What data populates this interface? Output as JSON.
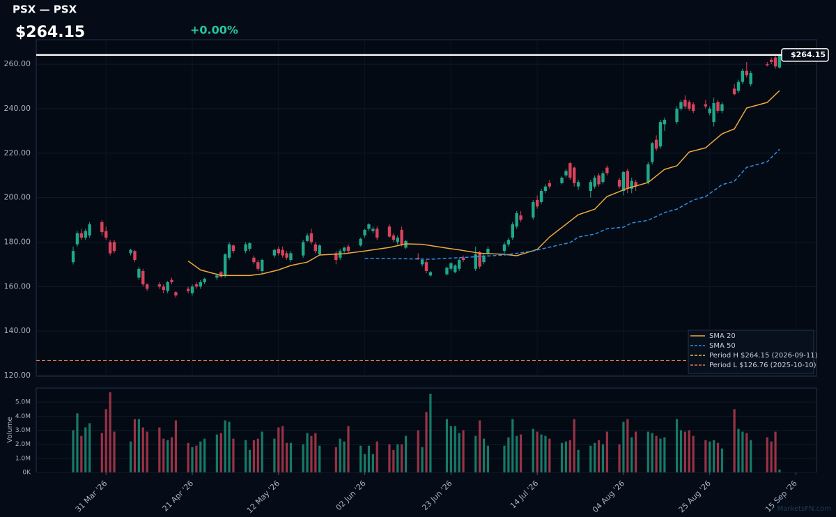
{
  "chart_data": {
    "type": "candlestick",
    "title": "PSX — PSX",
    "price_label": "$264.15",
    "change_label": "+0.00%",
    "x": [
      "2026-03-23",
      "2026-03-24",
      "2026-03-25",
      "2026-03-26",
      "2026-03-27",
      "2026-03-30",
      "2026-03-31",
      "2026-04-01",
      "2026-04-02",
      "2026-04-06",
      "2026-04-07",
      "2026-04-08",
      "2026-04-09",
      "2026-04-10",
      "2026-04-13",
      "2026-04-14",
      "2026-04-15",
      "2026-04-16",
      "2026-04-17",
      "2026-04-20",
      "2026-04-21",
      "2026-04-22",
      "2026-04-23",
      "2026-04-24",
      "2026-04-27",
      "2026-04-28",
      "2026-04-29",
      "2026-04-30",
      "2026-05-01",
      "2026-05-04",
      "2026-05-05",
      "2026-05-06",
      "2026-05-07",
      "2026-05-08",
      "2026-05-11",
      "2026-05-12",
      "2026-05-13",
      "2026-05-14",
      "2026-05-15",
      "2026-05-18",
      "2026-05-19",
      "2026-05-20",
      "2026-05-21",
      "2026-05-22",
      "2026-05-26",
      "2026-05-27",
      "2026-05-28",
      "2026-05-29",
      "2026-06-01",
      "2026-06-02",
      "2026-06-03",
      "2026-06-04",
      "2026-06-05",
      "2026-06-08",
      "2026-06-09",
      "2026-06-10",
      "2026-06-11",
      "2026-06-12",
      "2026-06-15",
      "2026-06-16",
      "2026-06-17",
      "2026-06-18",
      "2026-06-22",
      "2026-06-23",
      "2026-06-24",
      "2026-06-25",
      "2026-06-26",
      "2026-06-29",
      "2026-06-30",
      "2026-07-01",
      "2026-07-02",
      "2026-07-06",
      "2026-07-07",
      "2026-07-08",
      "2026-07-09",
      "2026-07-10",
      "2026-07-13",
      "2026-07-14",
      "2026-07-15",
      "2026-07-16",
      "2026-07-17",
      "2026-07-20",
      "2026-07-21",
      "2026-07-22",
      "2026-07-23",
      "2026-07-24",
      "2026-07-27",
      "2026-07-28",
      "2026-07-29",
      "2026-07-30",
      "2026-07-31",
      "2026-08-03",
      "2026-08-04",
      "2026-08-05",
      "2026-08-06",
      "2026-08-07",
      "2026-08-10",
      "2026-08-11",
      "2026-08-12",
      "2026-08-13",
      "2026-08-14",
      "2026-08-17",
      "2026-08-18",
      "2026-08-19",
      "2026-08-20",
      "2026-08-21",
      "2026-08-24",
      "2026-08-25",
      "2026-08-26",
      "2026-08-27",
      "2026-08-28",
      "2026-08-31",
      "2026-09-01",
      "2026-09-02",
      "2026-09-03",
      "2026-09-04",
      "2026-09-08",
      "2026-09-09",
      "2026-09-10",
      "2026-09-11"
    ],
    "open": [
      171,
      179,
      184,
      182,
      183,
      189,
      185,
      180,
      180,
      175,
      176,
      164,
      167,
      161,
      161,
      160,
      158,
      163,
      157.5,
      159,
      157,
      161,
      160,
      162,
      164,
      166.5,
      165,
      173,
      178.5,
      176,
      177,
      173,
      171,
      167,
      174,
      177,
      176.5,
      175,
      172,
      174,
      180.5,
      184,
      179,
      174.5,
      175,
      173,
      176,
      178,
      178.5,
      183,
      186,
      185,
      186,
      187,
      183,
      180,
      185.5,
      177.5,
      173,
      170,
      171,
      165,
      165.5,
      168,
      166.5,
      168,
      173,
      168,
      175.5,
      171,
      175,
      176,
      179,
      182,
      187,
      192,
      191,
      199,
      198,
      203,
      206.5,
      206.5,
      210,
      215.5,
      213.5,
      205,
      203,
      205,
      210,
      207,
      213.5,
      208,
      203,
      212,
      204,
      207,
      207,
      216,
      226,
      223,
      233,
      234,
      240,
      244,
      243,
      242,
      242,
      238,
      234,
      243,
      239,
      249,
      248,
      252,
      257,
      251,
      260,
      262,
      263,
      258.5
    ],
    "high": [
      178,
      185,
      186,
      186,
      189,
      190,
      187,
      181,
      181,
      177,
      176.5,
      169,
      168,
      161.5,
      162,
      161,
      162.5,
      164,
      158,
      160,
      161,
      162,
      163,
      164,
      166,
      167,
      175,
      180,
      179,
      180,
      180,
      174,
      172,
      172.5,
      177,
      178,
      178,
      176,
      176,
      181,
      184,
      186,
      180,
      179,
      176,
      177,
      178,
      179,
      182,
      186,
      188.5,
      187,
      187,
      188,
      184,
      183,
      187,
      181,
      175,
      172.5,
      172,
      167,
      169,
      171,
      170,
      173,
      174,
      178,
      176,
      175,
      178,
      180,
      182,
      189,
      194,
      194,
      199,
      201,
      204,
      206,
      208,
      209.5,
      213,
      216,
      214,
      208,
      208,
      210,
      211,
      212,
      214.5,
      209,
      212,
      213,
      209,
      208,
      216,
      225,
      228,
      235,
      236,
      241,
      244,
      246,
      244,
      243,
      244,
      241,
      245,
      244,
      243,
      251,
      253,
      258,
      261,
      257,
      261,
      263,
      264,
      264.15
    ],
    "low": [
      170,
      178,
      181,
      181,
      182,
      183,
      181,
      174,
      175,
      174,
      171,
      163,
      160,
      158,
      159,
      157,
      157,
      161,
      155,
      157,
      156,
      159,
      159,
      161,
      163,
      164,
      164,
      172,
      175,
      175,
      176,
      170,
      167,
      166,
      173,
      174,
      173,
      172,
      171,
      173,
      180,
      179,
      175,
      174,
      170,
      172,
      175,
      175,
      178,
      182,
      185,
      184,
      181,
      182,
      180,
      179,
      178,
      177,
      172,
      169,
      166,
      164.5,
      165,
      167,
      166,
      167,
      171,
      167,
      168,
      170,
      174,
      175,
      178,
      181,
      186,
      189,
      190,
      195,
      197,
      202,
      204,
      206,
      209,
      208,
      205,
      203.5,
      200,
      204,
      205,
      206,
      210,
      204,
      201,
      202,
      202,
      203,
      206,
      215,
      221,
      222,
      230,
      233,
      239,
      240,
      239,
      238,
      240,
      237,
      232,
      238,
      238,
      246,
      247,
      251,
      254,
      250,
      259,
      260,
      258,
      258
    ],
    "close": [
      176,
      184,
      182,
      185,
      188,
      184.5,
      182,
      175,
      176,
      176.5,
      172,
      168,
      161,
      159,
      160,
      158.5,
      162,
      162,
      156,
      158,
      160,
      160,
      162,
      163.5,
      165,
      164.5,
      174.5,
      179,
      176,
      179,
      179.5,
      171,
      168,
      172,
      176.5,
      175,
      174,
      173,
      175,
      180,
      183,
      180,
      176,
      178.5,
      172,
      176,
      177.5,
      176,
      181.5,
      185.5,
      188,
      186,
      182,
      182.5,
      181,
      182,
      179,
      180.5,
      172.5,
      172,
      167,
      166.5,
      168.5,
      170.5,
      169.5,
      172,
      172,
      174.5,
      169,
      174,
      177,
      179,
      181,
      188,
      193,
      190,
      198,
      196,
      203,
      205,
      205,
      209,
      212,
      209,
      206.5,
      207,
      207,
      209,
      206,
      211,
      211,
      205,
      211.5,
      204,
      207.5,
      205,
      215,
      224.5,
      222,
      234,
      235,
      240,
      243,
      241,
      240,
      239,
      241,
      240,
      242.5,
      239,
      242,
      246.5,
      252,
      257,
      255,
      256,
      259.5,
      261,
      259,
      264.15
    ],
    "volume": [
      3000000,
      4200000,
      2600000,
      3200000,
      3500000,
      2800000,
      4500000,
      5700000,
      2900000,
      2200000,
      3800000,
      3800000,
      3200000,
      2900000,
      3200000,
      2400000,
      2300000,
      2500000,
      3700000,
      2100000,
      1800000,
      1900000,
      2200000,
      2400000,
      2700000,
      2800000,
      3700000,
      3600000,
      2400000,
      2300000,
      1600000,
      2300000,
      2400000,
      2900000,
      2400000,
      3200000,
      3300000,
      2100000,
      2100000,
      2000000,
      2800000,
      2600000,
      2800000,
      1900000,
      1800000,
      2400000,
      2200000,
      3300000,
      1900000,
      1300000,
      1900000,
      1300000,
      2200000,
      2000000,
      1600000,
      2000000,
      2000000,
      2600000,
      3000000,
      1800000,
      4300000,
      5600000,
      3800000,
      3300000,
      3300000,
      2800000,
      3000000,
      2600000,
      3700000,
      2400000,
      1900000,
      1900000,
      2500000,
      3800000,
      2600000,
      2700000,
      3100000,
      2900000,
      2700000,
      2600000,
      2400000,
      2100000,
      2200000,
      2300000,
      3800000,
      1600000,
      1900000,
      2100000,
      2300000,
      2000000,
      2900000,
      2000000,
      3600000,
      3800000,
      2500000,
      2900000,
      2900000,
      2800000,
      2600000,
      2400000,
      2500000,
      3800000,
      3000000,
      2900000,
      3000000,
      2600000,
      2300000,
      2200000,
      2300000,
      2100000,
      1700000,
      4500000,
      3100000,
      2900000,
      2800000,
      2300000,
      2500000,
      2200000,
      2900000,
      200000
    ],
    "up_color": "#1fa88a",
    "down_color": "#d9435b",
    "xlim": [
      "2026-03-14",
      "2026-09-20"
    ],
    "xticks": [
      {
        "value": "2026-03-31",
        "label": "31 Mar '26"
      },
      {
        "value": "2026-04-21",
        "label": "21 Apr '26"
      },
      {
        "value": "2026-05-12",
        "label": "12 May '26"
      },
      {
        "value": "2026-06-02",
        "label": "02 Jun '26"
      },
      {
        "value": "2026-06-23",
        "label": "23 Jun '26"
      },
      {
        "value": "2026-07-14",
        "label": "14 Jul '26"
      },
      {
        "value": "2026-08-04",
        "label": "04 Aug '26"
      },
      {
        "value": "2026-08-25",
        "label": "25 Aug '26"
      },
      {
        "value": "2026-09-15",
        "label": "15 Sep '26"
      }
    ],
    "ylim": [
      120,
      271
    ],
    "yticks": [
      {
        "value": 120,
        "label": "120.00"
      },
      {
        "value": 140,
        "label": "140.00"
      },
      {
        "value": 160,
        "label": "160.00"
      },
      {
        "value": 180,
        "label": "180.00"
      },
      {
        "value": 200,
        "label": "200.00"
      },
      {
        "value": 220,
        "label": "220.00"
      },
      {
        "value": 240,
        "label": "240.00"
      },
      {
        "value": 260,
        "label": "260.00"
      }
    ],
    "grid": true,
    "overlays": [
      {
        "name": "SMA 20",
        "color": "#f0a93b",
        "dashed": false,
        "x": [
          "2026-04-20",
          "2026-04-23",
          "2026-04-28",
          "2026-05-05",
          "2026-05-08",
          "2026-05-12",
          "2026-05-15",
          "2026-05-19",
          "2026-05-22",
          "2026-05-28",
          "2026-06-02",
          "2026-06-08",
          "2026-06-12",
          "2026-06-16",
          "2026-06-22",
          "2026-06-25",
          "2026-06-30",
          "2026-07-06",
          "2026-07-09",
          "2026-07-14",
          "2026-07-17",
          "2026-07-24",
          "2026-07-28",
          "2026-07-31",
          "2026-08-05",
          "2026-08-10",
          "2026-08-14",
          "2026-08-17",
          "2026-08-20",
          "2026-08-24",
          "2026-08-28",
          "2026-08-31",
          "2026-09-03",
          "2026-09-08",
          "2026-09-11"
        ],
        "values": [
          171.5,
          167.5,
          165,
          165,
          165.7,
          167.5,
          169.5,
          171,
          174.2,
          174.8,
          176,
          177.6,
          179.2,
          179,
          177.3,
          176.5,
          175,
          174.5,
          173.9,
          176.7,
          182.3,
          192.3,
          194.8,
          200.5,
          204.2,
          206.8,
          212.7,
          214.3,
          220.5,
          222.4,
          228.7,
          230.9,
          240.3,
          242.8,
          248.1
        ]
      },
      {
        "name": "SMA 50",
        "color": "#2f8fe6",
        "dashed": true,
        "x": [
          "2026-06-02",
          "2026-06-12",
          "2026-06-18",
          "2026-06-30",
          "2026-07-06",
          "2026-07-13",
          "2026-07-16",
          "2026-07-22",
          "2026-07-24",
          "2026-07-28",
          "2026-07-31",
          "2026-08-04",
          "2026-08-06",
          "2026-08-10",
          "2026-08-14",
          "2026-08-17",
          "2026-08-21",
          "2026-08-24",
          "2026-08-28",
          "2026-08-31",
          "2026-09-03",
          "2026-09-08",
          "2026-09-11"
        ],
        "values": [
          172.6,
          172.5,
          172.3,
          173.5,
          174.2,
          176,
          177.3,
          179.8,
          182.3,
          183.6,
          186,
          186.7,
          188.6,
          189.8,
          193.3,
          194.8,
          198.9,
          200.5,
          205.8,
          207.4,
          213.6,
          216.1,
          221.8
        ]
      }
    ],
    "reference_lines": [
      {
        "name": "Period H $264.15 (2026-09-11)",
        "value": 264.15,
        "color": "#e8c547"
      },
      {
        "name": "Period L $126.76 (2025-10-10)",
        "value": 126.76,
        "color": "#e07b4a"
      }
    ],
    "last_price": {
      "value": 264.15,
      "label": "$264.15"
    },
    "volume_panel": {
      "ylabel": "Volume",
      "ylim": [
        0,
        6000000
      ],
      "yticks": [
        {
          "value": 0,
          "label": "0K"
        },
        {
          "value": 1000000,
          "label": "1.0M"
        },
        {
          "value": 2000000,
          "label": "2.0M"
        },
        {
          "value": 3000000,
          "label": "3.0M"
        },
        {
          "value": 4000000,
          "label": "4.0M"
        },
        {
          "value": 5000000,
          "label": "5.0M"
        }
      ]
    },
    "watermark": "MarketsFN.com"
  }
}
